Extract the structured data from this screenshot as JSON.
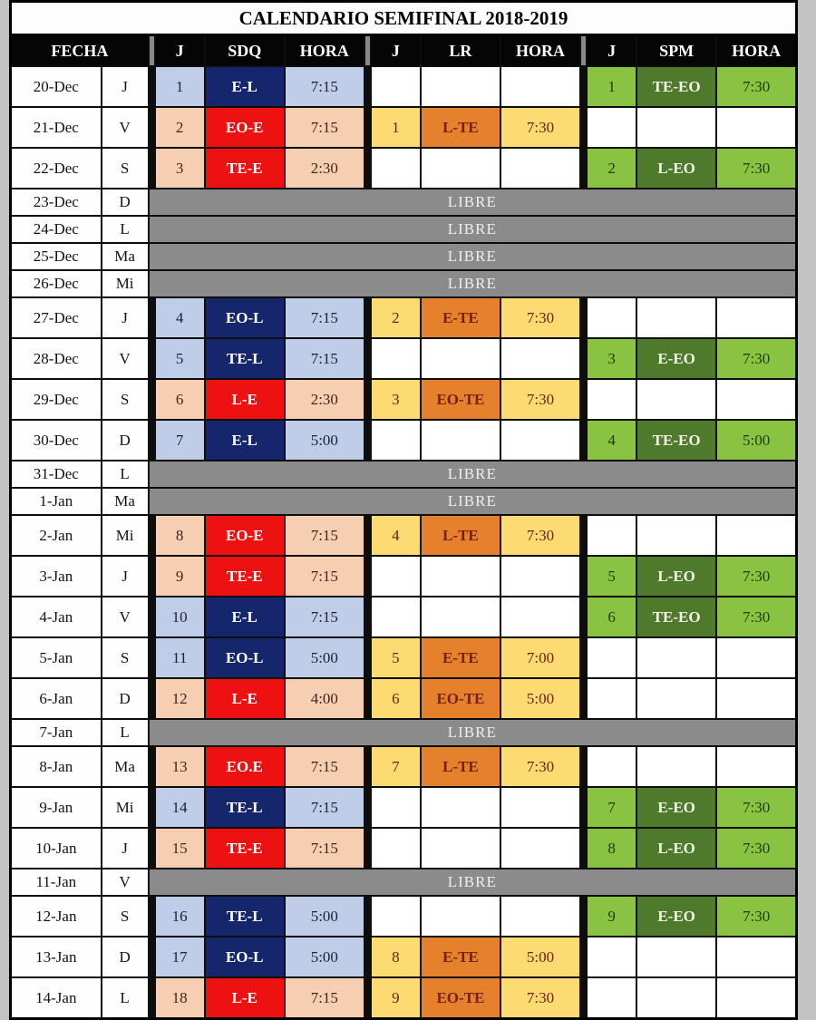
{
  "title": "CALENDARIO SEMIFINAL 2018-2019",
  "libre_label": "LIBRE",
  "header": {
    "fecha": "FECHA",
    "j": "J",
    "sdq": "SDQ",
    "lr": "LR",
    "spm": "SPM",
    "hora": "HORA"
  },
  "colors": {
    "navy": "#16266d",
    "light_blue": "#bfcde9",
    "red": "#ee1111",
    "peach": "#f6cfb2",
    "orange": "#e5802d",
    "yellow": "#fbdb72",
    "light_green": "#8ac341",
    "dark_green": "#4f7a2c",
    "libre_gray": "#8b8b8b",
    "header_black": "#050505"
  },
  "rows": [
    {
      "date": "20-Dec",
      "day": "J",
      "type": "games",
      "sdq": {
        "j": "1",
        "match": "E-L",
        "hora": "7:15",
        "style": "blue"
      },
      "lr": null,
      "spm": {
        "j": "1",
        "match": "TE-EO",
        "hora": "7:30",
        "style": "green"
      }
    },
    {
      "date": "21-Dec",
      "day": "V",
      "type": "games",
      "sdq": {
        "j": "2",
        "match": "EO-E",
        "hora": "7:15",
        "style": "red"
      },
      "lr": {
        "j": "1",
        "match": "L-TE",
        "hora": "7:30",
        "style": "orange"
      },
      "spm": null
    },
    {
      "date": "22-Dec",
      "day": "S",
      "type": "games",
      "sdq": {
        "j": "3",
        "match": "TE-E",
        "hora": "2:30",
        "style": "red"
      },
      "lr": null,
      "spm": {
        "j": "2",
        "match": "L-EO",
        "hora": "7:30",
        "style": "green"
      }
    },
    {
      "date": "23-Dec",
      "day": "D",
      "type": "libre"
    },
    {
      "date": "24-Dec",
      "day": "L",
      "type": "libre"
    },
    {
      "date": "25-Dec",
      "day": "Ma",
      "type": "libre"
    },
    {
      "date": "26-Dec",
      "day": "Mi",
      "type": "libre"
    },
    {
      "date": "27-Dec",
      "day": "J",
      "type": "games",
      "sdq": {
        "j": "4",
        "match": "EO-L",
        "hora": "7:15",
        "style": "blue"
      },
      "lr": {
        "j": "2",
        "match": "E-TE",
        "hora": "7:30",
        "style": "orange"
      },
      "spm": null
    },
    {
      "date": "28-Dec",
      "day": "V",
      "type": "games",
      "sdq": {
        "j": "5",
        "match": "TE-L",
        "hora": "7:15",
        "style": "blue"
      },
      "lr": null,
      "spm": {
        "j": "3",
        "match": "E-EO",
        "hora": "7:30",
        "style": "green"
      }
    },
    {
      "date": "29-Dec",
      "day": "S",
      "type": "games",
      "sdq": {
        "j": "6",
        "match": "L-E",
        "hora": "2:30",
        "style": "red"
      },
      "lr": {
        "j": "3",
        "match": "EO-TE",
        "hora": "7:30",
        "style": "orange"
      },
      "spm": null
    },
    {
      "date": "30-Dec",
      "day": "D",
      "type": "games",
      "sdq": {
        "j": "7",
        "match": "E-L",
        "hora": "5:00",
        "style": "blue"
      },
      "lr": null,
      "spm": {
        "j": "4",
        "match": "TE-EO",
        "hora": "5:00",
        "style": "green"
      }
    },
    {
      "date": "31-Dec",
      "day": "L",
      "type": "libre"
    },
    {
      "date": "1-Jan",
      "day": "Ma",
      "type": "libre"
    },
    {
      "date": "2-Jan",
      "day": "Mi",
      "type": "games",
      "sdq": {
        "j": "8",
        "match": "EO-E",
        "hora": "7:15",
        "style": "red"
      },
      "lr": {
        "j": "4",
        "match": "L-TE",
        "hora": "7:30",
        "style": "orange"
      },
      "spm": null
    },
    {
      "date": "3-Jan",
      "day": "J",
      "type": "games",
      "sdq": {
        "j": "9",
        "match": "TE-E",
        "hora": "7:15",
        "style": "red"
      },
      "lr": null,
      "spm": {
        "j": "5",
        "match": "L-EO",
        "hora": "7:30",
        "style": "green"
      }
    },
    {
      "date": "4-Jan",
      "day": "V",
      "type": "games",
      "sdq": {
        "j": "10",
        "match": "E-L",
        "hora": "7:15",
        "style": "blue"
      },
      "lr": null,
      "spm": {
        "j": "6",
        "match": "TE-EO",
        "hora": "7:30",
        "style": "green"
      }
    },
    {
      "date": "5-Jan",
      "day": "S",
      "type": "games",
      "sdq": {
        "j": "11",
        "match": "EO-L",
        "hora": "5:00",
        "style": "blue"
      },
      "lr": {
        "j": "5",
        "match": "E-TE",
        "hora": "7:00",
        "style": "orange"
      },
      "spm": null
    },
    {
      "date": "6-Jan",
      "day": "D",
      "type": "games",
      "sdq": {
        "j": "12",
        "match": "L-E",
        "hora": "4:00",
        "style": "red"
      },
      "lr": {
        "j": "6",
        "match": "EO-TE",
        "hora": "5:00",
        "style": "orange"
      },
      "spm": null
    },
    {
      "date": "7-Jan",
      "day": "L",
      "type": "libre"
    },
    {
      "date": "8-Jan",
      "day": "Ma",
      "type": "games",
      "sdq": {
        "j": "13",
        "match": "EO.E",
        "hora": "7:15",
        "style": "red"
      },
      "lr": {
        "j": "7",
        "match": "L-TE",
        "hora": "7:30",
        "style": "orange"
      },
      "spm": null
    },
    {
      "date": "9-Jan",
      "day": "Mi",
      "type": "games",
      "sdq": {
        "j": "14",
        "match": "TE-L",
        "hora": "7:15",
        "style": "blue"
      },
      "lr": null,
      "spm": {
        "j": "7",
        "match": "E-EO",
        "hora": "7:30",
        "style": "green"
      }
    },
    {
      "date": "10-Jan",
      "day": "J",
      "type": "games",
      "sdq": {
        "j": "15",
        "match": "TE-E",
        "hora": "7:15",
        "style": "red"
      },
      "lr": null,
      "spm": {
        "j": "8",
        "match": "L-EO",
        "hora": "7:30",
        "style": "green"
      }
    },
    {
      "date": "11-Jan",
      "day": "V",
      "type": "libre"
    },
    {
      "date": "12-Jan",
      "day": "S",
      "type": "games",
      "sdq": {
        "j": "16",
        "match": "TE-L",
        "hora": "5:00",
        "style": "blue"
      },
      "lr": null,
      "spm": {
        "j": "9",
        "match": "E-EO",
        "hora": "7:30",
        "style": "green"
      }
    },
    {
      "date": "13-Jan",
      "day": "D",
      "type": "games",
      "sdq": {
        "j": "17",
        "match": "EO-L",
        "hora": "5:00",
        "style": "blue"
      },
      "lr": {
        "j": "8",
        "match": "E-TE",
        "hora": "5:00",
        "style": "orange"
      },
      "spm": null
    },
    {
      "date": "14-Jan",
      "day": "L",
      "type": "games",
      "sdq": {
        "j": "18",
        "match": "L-E",
        "hora": "7:15",
        "style": "red"
      },
      "lr": {
        "j": "9",
        "match": "EO-TE",
        "hora": "7:30",
        "style": "orange"
      },
      "spm": null
    }
  ]
}
